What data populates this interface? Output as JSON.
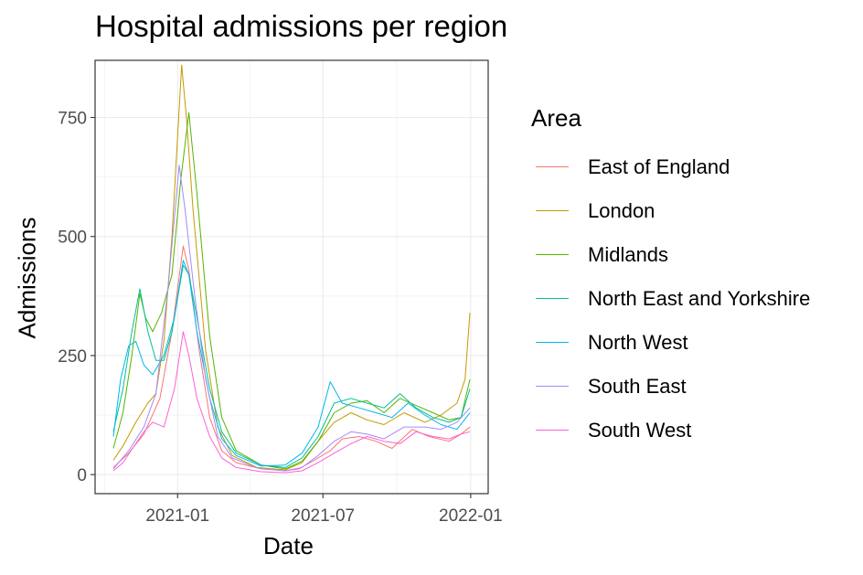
{
  "chart_data": {
    "type": "line",
    "title": "Hospital admissions per region",
    "xlabel": "Date",
    "ylabel": "Admissions",
    "x_range": [
      "2020-10-13",
      "2021-12-31"
    ],
    "ylim": [
      -40,
      870
    ],
    "x_ticks": [
      {
        "date": "2021-01-01",
        "label": "2021-01"
      },
      {
        "date": "2021-07-01",
        "label": "2021-07"
      },
      {
        "date": "2022-01-01",
        "label": "2022-01"
      }
    ],
    "y_ticks": [
      0,
      250,
      500,
      750
    ],
    "grid": true,
    "legend_title": "Area",
    "legend_position": "right",
    "series": [
      {
        "name": "East of England",
        "color": "#F8766D",
        "points": [
          [
            "2020-10-13",
            15
          ],
          [
            "2020-11-01",
            45
          ],
          [
            "2020-11-20",
            85
          ],
          [
            "2020-12-10",
            160
          ],
          [
            "2020-12-25",
            300
          ],
          [
            "2021-01-08",
            480
          ],
          [
            "2021-01-15",
            430
          ],
          [
            "2021-01-28",
            260
          ],
          [
            "2021-02-10",
            120
          ],
          [
            "2021-02-25",
            50
          ],
          [
            "2021-03-15",
            25
          ],
          [
            "2021-04-15",
            12
          ],
          [
            "2021-05-15",
            8
          ],
          [
            "2021-06-01",
            12
          ],
          [
            "2021-06-20",
            30
          ],
          [
            "2021-07-10",
            50
          ],
          [
            "2021-07-25",
            75
          ],
          [
            "2021-08-15",
            80
          ],
          [
            "2021-09-05",
            70
          ],
          [
            "2021-09-25",
            55
          ],
          [
            "2021-10-20",
            95
          ],
          [
            "2021-11-10",
            80
          ],
          [
            "2021-12-05",
            70
          ],
          [
            "2021-12-20",
            85
          ],
          [
            "2021-12-31",
            100
          ]
        ]
      },
      {
        "name": "London",
        "color": "#C49A00",
        "points": [
          [
            "2020-10-13",
            30
          ],
          [
            "2020-10-25",
            60
          ],
          [
            "2020-11-10",
            110
          ],
          [
            "2020-11-25",
            150
          ],
          [
            "2020-12-05",
            170
          ],
          [
            "2020-12-15",
            280
          ],
          [
            "2020-12-25",
            500
          ],
          [
            "2021-01-06",
            860
          ],
          [
            "2021-01-12",
            750
          ],
          [
            "2021-01-20",
            560
          ],
          [
            "2021-02-05",
            260
          ],
          [
            "2021-02-20",
            100
          ],
          [
            "2021-03-10",
            40
          ],
          [
            "2021-04-10",
            15
          ],
          [
            "2021-05-15",
            10
          ],
          [
            "2021-06-05",
            25
          ],
          [
            "2021-06-25",
            70
          ],
          [
            "2021-07-15",
            110
          ],
          [
            "2021-08-05",
            130
          ],
          [
            "2021-08-25",
            115
          ],
          [
            "2021-09-15",
            105
          ],
          [
            "2021-10-10",
            130
          ],
          [
            "2021-11-05",
            110
          ],
          [
            "2021-11-25",
            125
          ],
          [
            "2021-12-15",
            150
          ],
          [
            "2021-12-25",
            200
          ],
          [
            "2021-12-31",
            340
          ]
        ]
      },
      {
        "name": "Midlands",
        "color": "#53B400",
        "points": [
          [
            "2020-10-13",
            55
          ],
          [
            "2020-10-25",
            130
          ],
          [
            "2020-11-05",
            250
          ],
          [
            "2020-11-15",
            380
          ],
          [
            "2020-11-22",
            330
          ],
          [
            "2020-12-01",
            300
          ],
          [
            "2020-12-12",
            340
          ],
          [
            "2020-12-25",
            420
          ],
          [
            "2021-01-05",
            620
          ],
          [
            "2021-01-15",
            760
          ],
          [
            "2021-01-25",
            590
          ],
          [
            "2021-02-10",
            290
          ],
          [
            "2021-02-25",
            120
          ],
          [
            "2021-03-15",
            50
          ],
          [
            "2021-04-15",
            20
          ],
          [
            "2021-05-15",
            12
          ],
          [
            "2021-06-05",
            28
          ],
          [
            "2021-06-25",
            70
          ],
          [
            "2021-07-15",
            130
          ],
          [
            "2021-08-05",
            150
          ],
          [
            "2021-08-25",
            155
          ],
          [
            "2021-09-15",
            130
          ],
          [
            "2021-10-05",
            160
          ],
          [
            "2021-10-25",
            145
          ],
          [
            "2021-11-15",
            130
          ],
          [
            "2021-12-05",
            115
          ],
          [
            "2021-12-20",
            120
          ],
          [
            "2021-12-31",
            200
          ]
        ]
      },
      {
        "name": "North East and Yorkshire",
        "color": "#00C094",
        "points": [
          [
            "2020-10-13",
            90
          ],
          [
            "2020-10-25",
            180
          ],
          [
            "2020-11-05",
            300
          ],
          [
            "2020-11-15",
            390
          ],
          [
            "2020-11-25",
            300
          ],
          [
            "2020-12-05",
            240
          ],
          [
            "2020-12-15",
            240
          ],
          [
            "2020-12-25",
            300
          ],
          [
            "2021-01-08",
            440
          ],
          [
            "2021-01-15",
            420
          ],
          [
            "2021-01-25",
            330
          ],
          [
            "2021-02-10",
            180
          ],
          [
            "2021-02-25",
            90
          ],
          [
            "2021-03-15",
            45
          ],
          [
            "2021-04-15",
            20
          ],
          [
            "2021-05-15",
            15
          ],
          [
            "2021-06-05",
            35
          ],
          [
            "2021-06-25",
            80
          ],
          [
            "2021-07-15",
            150
          ],
          [
            "2021-08-05",
            160
          ],
          [
            "2021-08-25",
            150
          ],
          [
            "2021-09-15",
            140
          ],
          [
            "2021-10-05",
            170
          ],
          [
            "2021-10-25",
            140
          ],
          [
            "2021-11-15",
            120
          ],
          [
            "2021-12-05",
            110
          ],
          [
            "2021-12-20",
            120
          ],
          [
            "2021-12-31",
            180
          ]
        ]
      },
      {
        "name": "North West",
        "color": "#00B6EB",
        "points": [
          [
            "2020-10-13",
            80
          ],
          [
            "2020-10-22",
            200
          ],
          [
            "2020-11-01",
            270
          ],
          [
            "2020-11-10",
            280
          ],
          [
            "2020-11-20",
            230
          ],
          [
            "2020-12-01",
            210
          ],
          [
            "2020-12-15",
            250
          ],
          [
            "2020-12-28",
            330
          ],
          [
            "2021-01-08",
            450
          ],
          [
            "2021-01-15",
            420
          ],
          [
            "2021-01-25",
            300
          ],
          [
            "2021-02-10",
            160
          ],
          [
            "2021-02-25",
            75
          ],
          [
            "2021-03-15",
            40
          ],
          [
            "2021-04-15",
            18
          ],
          [
            "2021-05-15",
            20
          ],
          [
            "2021-06-05",
            45
          ],
          [
            "2021-06-25",
            100
          ],
          [
            "2021-07-10",
            195
          ],
          [
            "2021-07-25",
            150
          ],
          [
            "2021-08-15",
            140
          ],
          [
            "2021-09-05",
            130
          ],
          [
            "2021-09-25",
            120
          ],
          [
            "2021-10-15",
            150
          ],
          [
            "2021-11-05",
            125
          ],
          [
            "2021-11-25",
            105
          ],
          [
            "2021-12-15",
            95
          ],
          [
            "2021-12-31",
            130
          ]
        ]
      },
      {
        "name": "South East",
        "color": "#A58AFF",
        "points": [
          [
            "2020-10-13",
            12
          ],
          [
            "2020-11-01",
            50
          ],
          [
            "2020-11-20",
            100
          ],
          [
            "2020-12-05",
            170
          ],
          [
            "2020-12-20",
            390
          ],
          [
            "2021-01-03",
            650
          ],
          [
            "2021-01-10",
            560
          ],
          [
            "2021-01-22",
            380
          ],
          [
            "2021-02-05",
            200
          ],
          [
            "2021-02-20",
            80
          ],
          [
            "2021-03-10",
            35
          ],
          [
            "2021-04-10",
            14
          ],
          [
            "2021-05-15",
            8
          ],
          [
            "2021-06-05",
            15
          ],
          [
            "2021-06-25",
            40
          ],
          [
            "2021-07-15",
            70
          ],
          [
            "2021-08-05",
            90
          ],
          [
            "2021-08-25",
            85
          ],
          [
            "2021-09-15",
            75
          ],
          [
            "2021-10-10",
            100
          ],
          [
            "2021-11-05",
            100
          ],
          [
            "2021-11-25",
            95
          ],
          [
            "2021-12-15",
            110
          ],
          [
            "2021-12-31",
            140
          ]
        ]
      },
      {
        "name": "South West",
        "color": "#FB61D7",
        "points": [
          [
            "2020-10-13",
            8
          ],
          [
            "2020-10-25",
            25
          ],
          [
            "2020-11-08",
            60
          ],
          [
            "2020-11-20",
            90
          ],
          [
            "2020-12-01",
            110
          ],
          [
            "2020-12-15",
            100
          ],
          [
            "2020-12-28",
            180
          ],
          [
            "2021-01-08",
            300
          ],
          [
            "2021-01-15",
            250
          ],
          [
            "2021-01-25",
            160
          ],
          [
            "2021-02-10",
            80
          ],
          [
            "2021-02-25",
            35
          ],
          [
            "2021-03-15",
            15
          ],
          [
            "2021-04-15",
            6
          ],
          [
            "2021-05-15",
            4
          ],
          [
            "2021-06-05",
            8
          ],
          [
            "2021-06-25",
            25
          ],
          [
            "2021-07-15",
            45
          ],
          [
            "2021-08-05",
            65
          ],
          [
            "2021-08-25",
            80
          ],
          [
            "2021-09-15",
            70
          ],
          [
            "2021-10-05",
            65
          ],
          [
            "2021-10-25",
            90
          ],
          [
            "2021-11-15",
            80
          ],
          [
            "2021-12-05",
            75
          ],
          [
            "2021-12-20",
            85
          ],
          [
            "2021-12-31",
            90
          ]
        ]
      }
    ]
  }
}
